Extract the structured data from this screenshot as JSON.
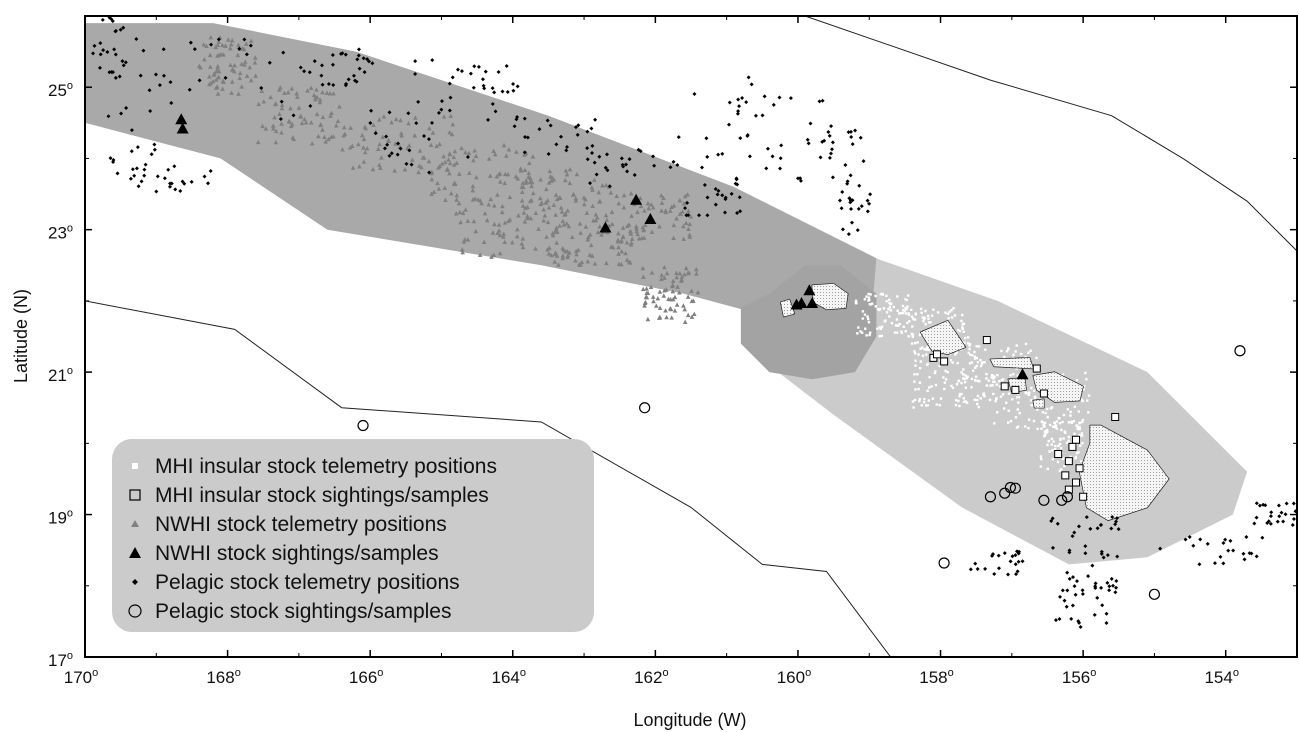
{
  "chart_data": {
    "type": "scatter",
    "xlabel": "Longitude (W)",
    "ylabel": "Latitude (N)",
    "xlim": [
      170,
      153
    ],
    "ylim": [
      17,
      26
    ],
    "x_ticks": [
      {
        "value": 170,
        "label": "170"
      },
      {
        "value": 168,
        "label": "168"
      },
      {
        "value": 166,
        "label": "166"
      },
      {
        "value": 164,
        "label": "164"
      },
      {
        "value": 162,
        "label": "162"
      },
      {
        "value": 160,
        "label": "160"
      },
      {
        "value": 158,
        "label": "158"
      },
      {
        "value": 156,
        "label": "156"
      },
      {
        "value": 154,
        "label": "154"
      }
    ],
    "y_ticks": [
      {
        "value": 17,
        "label": "17"
      },
      {
        "value": 19,
        "label": "19"
      },
      {
        "value": 21,
        "label": "21"
      },
      {
        "value": 23,
        "label": "23"
      },
      {
        "value": 25,
        "label": "25"
      }
    ],
    "degree_symbol": "o",
    "grid": false,
    "legend_position": "bottom-left",
    "legend": [
      {
        "key": "mhi_tel",
        "label": "MHI insular stock telemetry positions",
        "marker": "white-square"
      },
      {
        "key": "mhi_sight",
        "label": "MHI insular stock sightings/samples",
        "marker": "open-square"
      },
      {
        "key": "nwhi_tel",
        "label": "NWHI stock telemetry positions",
        "marker": "gray-triangle"
      },
      {
        "key": "nwhi_sight",
        "label": "NWHI stock sightings/samples",
        "marker": "black-triangle"
      },
      {
        "key": "pel_tel",
        "label": "Pelagic stock telemetry positions",
        "marker": "black-diamond"
      },
      {
        "key": "pel_sight",
        "label": "Pelagic stock sightings/samples",
        "marker": "open-circle"
      }
    ],
    "colors": {
      "nwhi_zone": "#a9a9a9",
      "mhi_zone": "#cbcbcb",
      "kauai_zone": "#a3a3a3",
      "nwhi_tel": "#808080",
      "mhi_tel": "#ffffff",
      "black": "#000000"
    },
    "nwhi_stock_area": [
      [
        170,
        25.9
      ],
      [
        168.2,
        25.9
      ],
      [
        166.2,
        25.5
      ],
      [
        163.5,
        24.6
      ],
      [
        160.9,
        23.6
      ],
      [
        158.9,
        22.6
      ],
      [
        159,
        21.4
      ],
      [
        161.6,
        22.1
      ],
      [
        163.6,
        22.5
      ],
      [
        166.6,
        23.0
      ],
      [
        168.1,
        24.0
      ],
      [
        170,
        24.5
      ]
    ],
    "mhi_stock_area": [
      [
        160.2,
        22.6
      ],
      [
        159.2,
        22.7
      ],
      [
        157.2,
        22.0
      ],
      [
        155.1,
        21.0
      ],
      [
        153.7,
        19.6
      ],
      [
        153.9,
        19.0
      ],
      [
        155.1,
        18.4
      ],
      [
        156.2,
        18.3
      ],
      [
        157.7,
        19.1
      ],
      [
        159.5,
        20.4
      ],
      [
        160.8,
        21.4
      ],
      [
        160.8,
        22.0
      ]
    ],
    "kauai_area": [
      [
        160.4,
        22.1
      ],
      [
        159.9,
        22.5
      ],
      [
        159.4,
        22.5
      ],
      [
        158.9,
        22.1
      ],
      [
        158.9,
        21.5
      ],
      [
        159.2,
        21.0
      ],
      [
        159.8,
        20.9
      ],
      [
        160.4,
        21.0
      ],
      [
        160.8,
        21.4
      ],
      [
        160.8,
        21.9
      ]
    ],
    "eez_lines": [
      [
        [
          170,
          22
        ],
        [
          167.9,
          21.6
        ],
        [
          166.4,
          20.5
        ],
        [
          163.6,
          20.3
        ],
        [
          161.5,
          19.1
        ],
        [
          160.5,
          18.3
        ],
        [
          159.6,
          18.2
        ],
        [
          158.7,
          17
        ]
      ],
      [
        [
          159.9,
          26
        ],
        [
          157.3,
          25.1
        ],
        [
          155.6,
          24.6
        ],
        [
          154.6,
          24.0
        ],
        [
          153.7,
          23.4
        ],
        [
          153,
          22.7
        ]
      ]
    ],
    "islands": [
      {
        "name": "Niihau",
        "points": [
          [
            160.24,
            21.98
          ],
          [
            160.12,
            22.02
          ],
          [
            160.05,
            21.82
          ],
          [
            160.2,
            21.78
          ]
        ]
      },
      {
        "name": "Kauai",
        "points": [
          [
            159.8,
            22.22
          ],
          [
            159.5,
            22.24
          ],
          [
            159.3,
            22.1
          ],
          [
            159.33,
            21.9
          ],
          [
            159.6,
            21.88
          ],
          [
            159.78,
            21.98
          ]
        ]
      },
      {
        "name": "Oahu",
        "points": [
          [
            158.28,
            21.56
          ],
          [
            157.9,
            21.72
          ],
          [
            157.65,
            21.35
          ],
          [
            157.9,
            21.25
          ],
          [
            158.12,
            21.3
          ]
        ]
      },
      {
        "name": "Molokai",
        "points": [
          [
            157.3,
            21.18
          ],
          [
            156.75,
            21.2
          ],
          [
            156.7,
            21.05
          ],
          [
            157.25,
            21.08
          ]
        ]
      },
      {
        "name": "Lanai",
        "points": [
          [
            157.05,
            20.9
          ],
          [
            156.82,
            20.92
          ],
          [
            156.8,
            20.75
          ],
          [
            157.0,
            20.72
          ]
        ]
      },
      {
        "name": "Maui",
        "points": [
          [
            156.7,
            20.95
          ],
          [
            156.4,
            21.0
          ],
          [
            156.0,
            20.8
          ],
          [
            156.05,
            20.6
          ],
          [
            156.4,
            20.58
          ],
          [
            156.65,
            20.75
          ]
        ]
      },
      {
        "name": "Kahoolawe",
        "points": [
          [
            156.7,
            20.6
          ],
          [
            156.55,
            20.62
          ],
          [
            156.55,
            20.5
          ],
          [
            156.68,
            20.5
          ]
        ]
      },
      {
        "name": "Hawaii",
        "points": [
          [
            155.9,
            20.25
          ],
          [
            155.75,
            20.25
          ],
          [
            155.1,
            19.9
          ],
          [
            154.8,
            19.5
          ],
          [
            155.1,
            19.1
          ],
          [
            155.65,
            18.92
          ],
          [
            155.95,
            19.1
          ],
          [
            156.05,
            19.6
          ],
          [
            155.9,
            20.0
          ]
        ]
      }
    ],
    "nwhi_sightings": [
      [
        168.65,
        24.55
      ],
      [
        168.63,
        24.42
      ],
      [
        162.27,
        23.42
      ],
      [
        162.7,
        23.03
      ],
      [
        162.07,
        23.15
      ],
      [
        159.84,
        22.15
      ],
      [
        159.95,
        21.97
      ],
      [
        160.02,
        21.95
      ],
      [
        159.8,
        21.97
      ],
      [
        156.85,
        20.97
      ]
    ],
    "mhi_sightings": [
      [
        155.55,
        20.37
      ],
      [
        157.35,
        21.45
      ],
      [
        158.1,
        21.2
      ],
      [
        157.95,
        21.15
      ],
      [
        158.05,
        21.25
      ],
      [
        156.95,
        20.75
      ],
      [
        156.65,
        21.05
      ],
      [
        156.55,
        20.7
      ],
      [
        156.1,
        20.05
      ],
      [
        156.15,
        19.95
      ],
      [
        156.2,
        19.75
      ],
      [
        156.05,
        19.65
      ],
      [
        156.25,
        19.55
      ],
      [
        156.35,
        19.85
      ],
      [
        156.2,
        19.35
      ],
      [
        156.0,
        19.25
      ],
      [
        156.1,
        19.45
      ],
      [
        157.1,
        20.8
      ]
    ],
    "pelagic_sightings": [
      [
        153.8,
        21.3
      ],
      [
        162.15,
        20.5
      ],
      [
        166.1,
        20.25
      ],
      [
        157.3,
        19.25
      ],
      [
        157.1,
        19.3
      ],
      [
        157.02,
        19.38
      ],
      [
        156.95,
        19.37
      ],
      [
        156.55,
        19.2
      ],
      [
        156.3,
        19.2
      ],
      [
        156.22,
        19.25
      ],
      [
        157.95,
        18.32
      ],
      [
        155.0,
        17.88
      ]
    ],
    "nwhi_cluster_centers": [
      [
        168.0,
        25.3,
        0.4,
        0.4
      ],
      [
        167.0,
        24.6,
        0.6,
        0.4
      ],
      [
        165.6,
        24.2,
        0.8,
        0.4
      ],
      [
        164.4,
        23.8,
        0.8,
        0.4
      ],
      [
        163.2,
        23.5,
        0.7,
        0.35
      ],
      [
        162.2,
        23.2,
        0.7,
        0.35
      ],
      [
        164.0,
        23.0,
        0.8,
        0.4
      ],
      [
        161.8,
        22.1,
        0.4,
        0.4
      ],
      [
        162.9,
        22.8,
        0.6,
        0.3
      ]
    ],
    "mhi_cluster_centers": [
      [
        158.0,
        21.6,
        0.4,
        0.3
      ],
      [
        157.2,
        21.0,
        0.6,
        0.4
      ],
      [
        156.6,
        20.6,
        0.7,
        0.4
      ],
      [
        156.3,
        20.0,
        0.3,
        0.4
      ],
      [
        158.8,
        21.8,
        0.4,
        0.3
      ],
      [
        157.9,
        20.9,
        0.5,
        0.4
      ]
    ],
    "pelagic_cluster_centers": [
      [
        168.4,
        25.3,
        1.2,
        0.4
      ],
      [
        166.0,
        24.8,
        1.3,
        0.6
      ],
      [
        165.0,
        24.3,
        0.8,
        0.5
      ],
      [
        169.2,
        24.5,
        0.5,
        0.8
      ],
      [
        168.8,
        23.7,
        0.6,
        0.2
      ],
      [
        163.4,
        24.3,
        0.6,
        0.3
      ],
      [
        162.5,
        23.9,
        0.5,
        0.3
      ],
      [
        161.0,
        24.5,
        0.8,
        0.7
      ],
      [
        160.2,
        24.3,
        0.7,
        0.6
      ],
      [
        159.5,
        24.0,
        0.5,
        0.4
      ],
      [
        159.2,
        23.3,
        0.3,
        0.4
      ],
      [
        161.2,
        23.5,
        0.4,
        0.3
      ],
      [
        164.4,
        25.0,
        0.5,
        0.3
      ],
      [
        166.5,
        25.3,
        0.5,
        0.3
      ],
      [
        169.6,
        25.6,
        0.3,
        0.4
      ],
      [
        156.0,
        18.7,
        0.5,
        0.3
      ],
      [
        155.9,
        18.2,
        0.4,
        0.3
      ],
      [
        156.0,
        17.7,
        0.4,
        0.3
      ],
      [
        157.2,
        18.3,
        0.4,
        0.2
      ],
      [
        154.2,
        18.5,
        0.8,
        0.2
      ],
      [
        153.3,
        19.0,
        0.3,
        0.2
      ]
    ]
  }
}
